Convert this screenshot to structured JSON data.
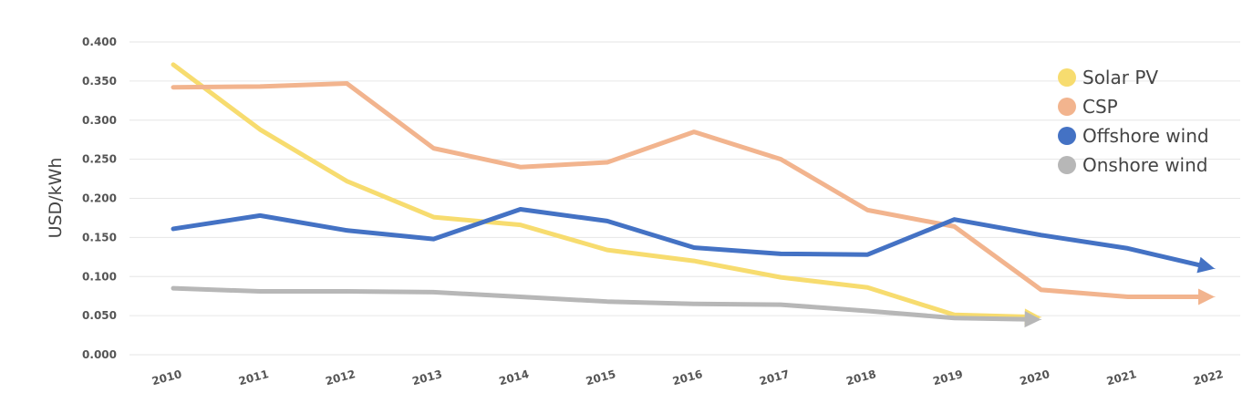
{
  "chart_data": {
    "type": "line",
    "ylabel": "USD/kWh",
    "ylim": [
      0,
      0.4
    ],
    "y_ticks": [
      "0.000",
      "0.050",
      "0.100",
      "0.150",
      "0.200",
      "0.250",
      "0.300",
      "0.350",
      "0.400"
    ],
    "y_tick_values": [
      0,
      0.05,
      0.1,
      0.15,
      0.2,
      0.25,
      0.3,
      0.35,
      0.4
    ],
    "categories": [
      "2010",
      "2011",
      "2012",
      "2013",
      "2014",
      "2015",
      "2016",
      "2017",
      "2018",
      "2019",
      "2020",
      "2021",
      "2022"
    ],
    "grid": true,
    "legend_position": "top-right",
    "series": [
      {
        "name": "Solar PV",
        "color": "#f7dc6f",
        "values": [
          0.371,
          0.288,
          0.222,
          0.176,
          0.166,
          0.134,
          0.12,
          0.099,
          0.086,
          0.051,
          0.048,
          null,
          null
        ]
      },
      {
        "name": "CSP",
        "color": "#f2b48e",
        "values": [
          0.342,
          0.343,
          0.347,
          0.264,
          0.24,
          0.246,
          0.285,
          0.25,
          0.185,
          0.164,
          0.083,
          0.074,
          0.074
        ]
      },
      {
        "name": "Offshore wind",
        "color": "#4472c4",
        "values": [
          0.161,
          0.178,
          0.159,
          0.148,
          0.186,
          0.171,
          0.137,
          0.129,
          0.128,
          0.173,
          0.153,
          0.136,
          0.11
        ]
      },
      {
        "name": "Onshore wind",
        "color": "#b7b7b7",
        "values": [
          0.085,
          0.081,
          0.081,
          0.08,
          0.074,
          0.068,
          0.065,
          0.064,
          0.056,
          0.047,
          0.045,
          null,
          null
        ]
      }
    ]
  }
}
